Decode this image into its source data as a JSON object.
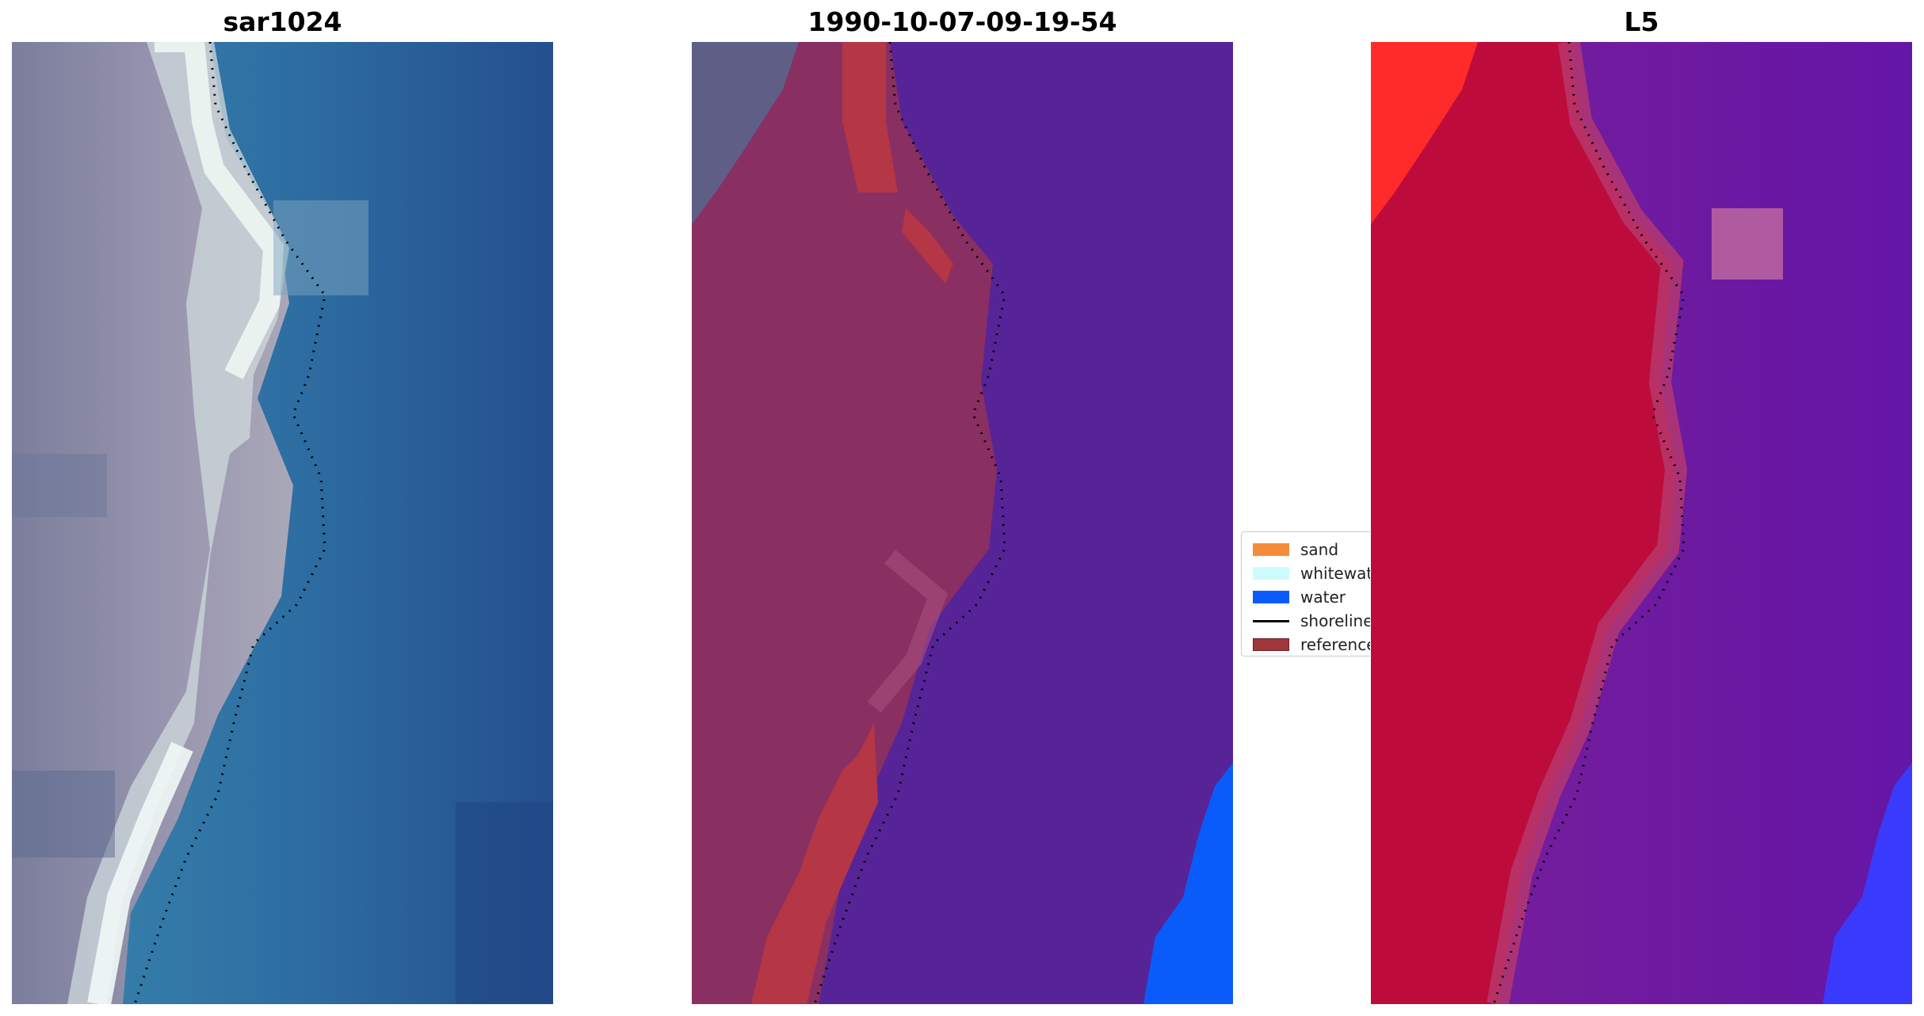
{
  "panels": [
    {
      "title": "sar1024"
    },
    {
      "title": "1990-10-07-09-19-54"
    },
    {
      "title": "L5"
    }
  ],
  "legend": {
    "items": [
      {
        "label": "sand",
        "color": "#f58c3a"
      },
      {
        "label": "whitewater",
        "color": "#ccfcfc"
      },
      {
        "label": "water",
        "color": "#0a5cfa"
      },
      {
        "label": "shoreline",
        "color": "#000000"
      },
      {
        "label": "reference",
        "color": "#a1363d"
      }
    ]
  },
  "colors": {
    "sar_land": "#8e8ea6",
    "sar_whitewater": "#e8f3f0",
    "sar_sea": "#2f6b9f",
    "class_land": "#8a2f62",
    "class_water": "#572497",
    "class_reference": "#b53644",
    "class_sea_blue": "#0a5cfa",
    "l5_land": "#c0123e",
    "l5_sea": "#6a1aa0",
    "l5_bright": "#ff2a2a",
    "l5_blue": "#3a3afd"
  }
}
